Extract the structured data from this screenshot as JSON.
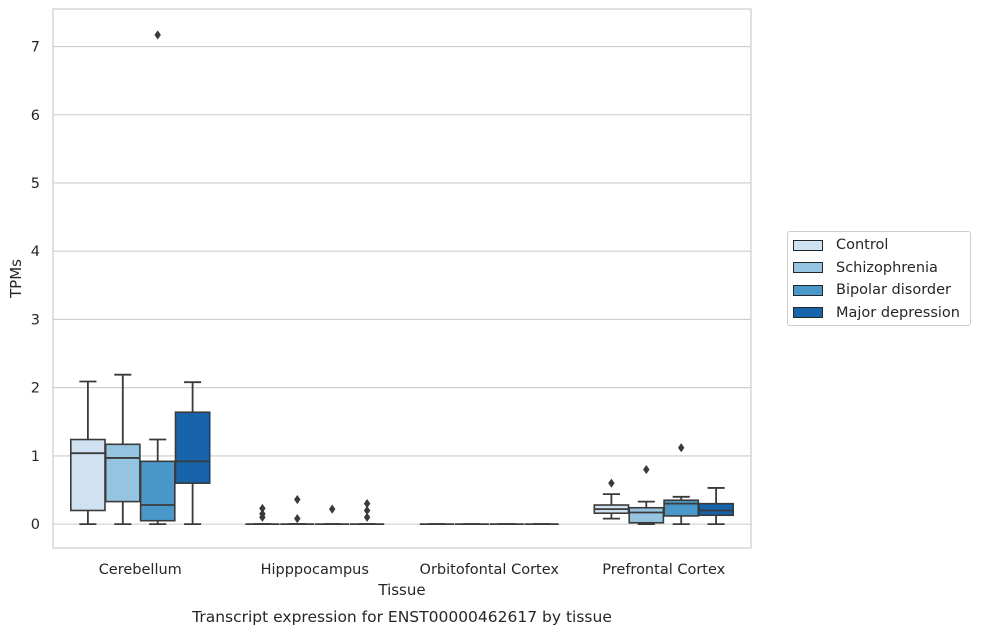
{
  "chart_data": {
    "type": "box",
    "caption": "Transcript expression for ENST00000462617 by tissue",
    "xlabel": "Tissue",
    "ylabel": "TPMs",
    "ylim": [
      -0.35,
      7.55
    ],
    "yticks": [
      0,
      1,
      2,
      3,
      4,
      5,
      6,
      7
    ],
    "grid": "horizontal",
    "legend_position": "right",
    "categories": [
      "Cerebellum",
      "Hipppocampus",
      "Orbitofontal Cortex",
      "Prefrontal Cortex"
    ],
    "series": [
      {
        "name": "Control",
        "color": "#d0e1f2",
        "boxes": [
          {
            "whislo": 0.0,
            "q1": 0.2,
            "med": 1.04,
            "q3": 1.24,
            "whishi": 2.09,
            "fliers": []
          },
          {
            "whislo": 0.0,
            "q1": 0.0,
            "med": 0.0,
            "q3": 0.0,
            "whishi": 0.0,
            "fliers": [
              0.1,
              0.15,
              0.23
            ]
          },
          {
            "whislo": 0.0,
            "q1": 0.0,
            "med": 0.0,
            "q3": 0.0,
            "whishi": 0.0,
            "fliers": []
          },
          {
            "whislo": 0.08,
            "q1": 0.16,
            "med": 0.22,
            "q3": 0.28,
            "whishi": 0.44,
            "fliers": [
              0.6
            ]
          }
        ]
      },
      {
        "name": "Schizophrenia",
        "color": "#94c4df",
        "boxes": [
          {
            "whislo": 0.0,
            "q1": 0.33,
            "med": 0.97,
            "q3": 1.17,
            "whishi": 2.19,
            "fliers": []
          },
          {
            "whislo": 0.0,
            "q1": 0.0,
            "med": 0.0,
            "q3": 0.0,
            "whishi": 0.0,
            "fliers": [
              0.08,
              0.36
            ]
          },
          {
            "whislo": 0.0,
            "q1": 0.0,
            "med": 0.0,
            "q3": 0.0,
            "whishi": 0.0,
            "fliers": []
          },
          {
            "whislo": 0.0,
            "q1": 0.02,
            "med": 0.17,
            "q3": 0.24,
            "whishi": 0.33,
            "fliers": [
              0.8
            ]
          }
        ]
      },
      {
        "name": "Bipolar disorder",
        "color": "#4a98c9",
        "boxes": [
          {
            "whislo": 0.0,
            "q1": 0.05,
            "med": 0.28,
            "q3": 0.92,
            "whishi": 1.24,
            "fliers": [
              7.17
            ]
          },
          {
            "whislo": 0.0,
            "q1": 0.0,
            "med": 0.0,
            "q3": 0.0,
            "whishi": 0.0,
            "fliers": [
              0.22
            ]
          },
          {
            "whislo": 0.0,
            "q1": 0.0,
            "med": 0.0,
            "q3": 0.0,
            "whishi": 0.0,
            "fliers": []
          },
          {
            "whislo": 0.0,
            "q1": 0.12,
            "med": 0.3,
            "q3": 0.35,
            "whishi": 0.4,
            "fliers": [
              1.12
            ]
          }
        ]
      },
      {
        "name": "Major depression",
        "color": "#1764ab",
        "boxes": [
          {
            "whislo": 0.0,
            "q1": 0.6,
            "med": 0.92,
            "q3": 1.64,
            "whishi": 2.08,
            "fliers": []
          },
          {
            "whislo": 0.0,
            "q1": 0.0,
            "med": 0.0,
            "q3": 0.0,
            "whishi": 0.0,
            "fliers": [
              0.1,
              0.2,
              0.3
            ]
          },
          {
            "whislo": 0.0,
            "q1": 0.0,
            "med": 0.0,
            "q3": 0.0,
            "whishi": 0.0,
            "fliers": []
          },
          {
            "whislo": 0.0,
            "q1": 0.13,
            "med": 0.2,
            "q3": 0.3,
            "whishi": 0.53,
            "fliers": []
          }
        ]
      }
    ]
  }
}
